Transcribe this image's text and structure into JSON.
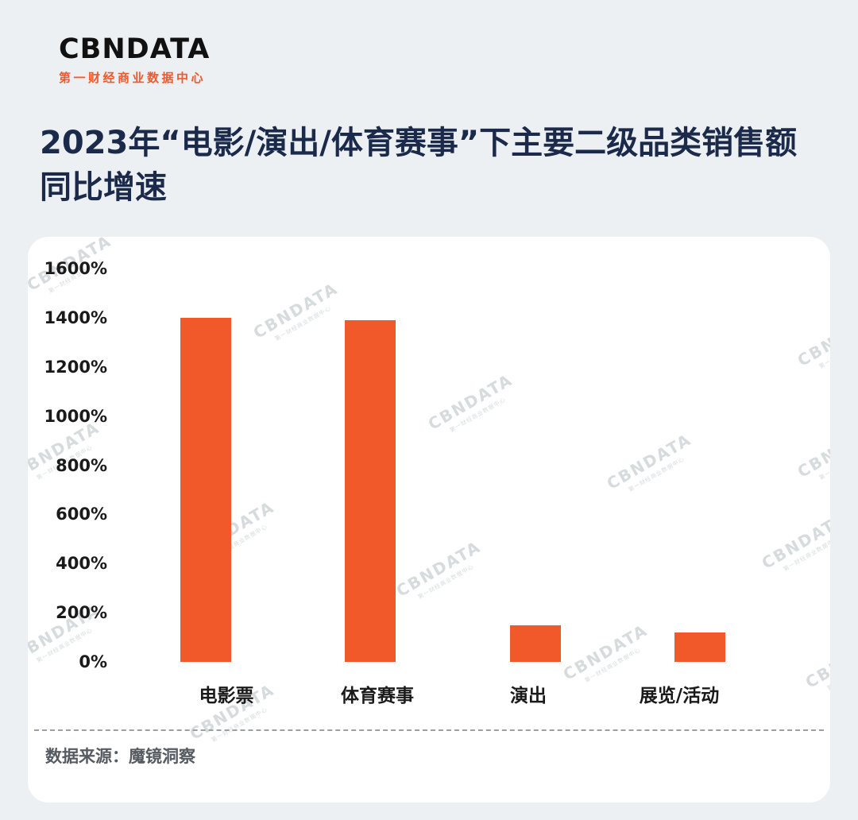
{
  "logo": {
    "text": "CBNDATA",
    "subtitle": "第一财经商业数据中心"
  },
  "title": "2023年“电影/演出/体育赛事”下主要二级品类销售额同比增速",
  "watermark": {
    "brand": "CBNDATA",
    "subtitle": "第一财经商业数据中心"
  },
  "footer": {
    "source": "数据来源：魔镜洞察"
  },
  "colors": {
    "bar": "#F1592A",
    "title": "#1B2A4A",
    "brand_accent": "#F1592A",
    "page_background": "#EDF0F2",
    "card_background": "#FFFFFF"
  },
  "chart_data": {
    "type": "bar",
    "title": "2023年“电影/演出/体育赛事”下主要二级品类销售额同比增速",
    "categories": [
      "电影票",
      "体育赛事",
      "演出",
      "展览/活动"
    ],
    "values": [
      1400,
      1390,
      150,
      120
    ],
    "value_unit": "%",
    "xlabel": "",
    "ylabel": "",
    "ylim": [
      0,
      1600
    ],
    "yticks": [
      0,
      200,
      400,
      600,
      800,
      1000,
      1200,
      1400,
      1600
    ],
    "grid": false,
    "legend": false,
    "source": "数据来源：魔镜洞察"
  }
}
